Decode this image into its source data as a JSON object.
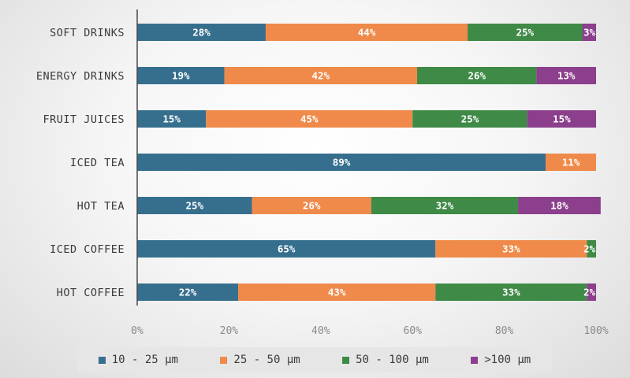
{
  "chart_data": {
    "type": "bar",
    "orientation": "horizontal",
    "stacked": true,
    "categories": [
      "SOFT DRINKS",
      "ENERGY DRINKS",
      "FRUIT JUICES",
      "ICED TEA",
      "HOT TEA",
      "ICED COFFEE",
      "HOT COFFEE"
    ],
    "series": [
      {
        "name": "10 - 25 µm",
        "color": "#366f8e",
        "values": [
          28,
          19,
          15,
          89,
          25,
          65,
          22
        ]
      },
      {
        "name": "25 - 50 µm",
        "color": "#ef8a4a",
        "values": [
          44,
          42,
          45,
          11,
          26,
          33,
          43
        ]
      },
      {
        "name": "50 - 100 µm",
        "color": "#3e8a46",
        "values": [
          25,
          26,
          25,
          0,
          32,
          2,
          33
        ]
      },
      {
        "name": ">100 µm",
        "color": "#8b3f8c",
        "values": [
          3,
          13,
          15,
          0,
          18,
          0,
          2
        ]
      }
    ],
    "xlim": [
      0,
      100
    ],
    "xticks": [
      "0%",
      "20%",
      "40%",
      "60%",
      "80%",
      "100%"
    ],
    "value_suffix": "%",
    "legend_position": "bottom",
    "title": "",
    "xlabel": "",
    "ylabel": ""
  }
}
